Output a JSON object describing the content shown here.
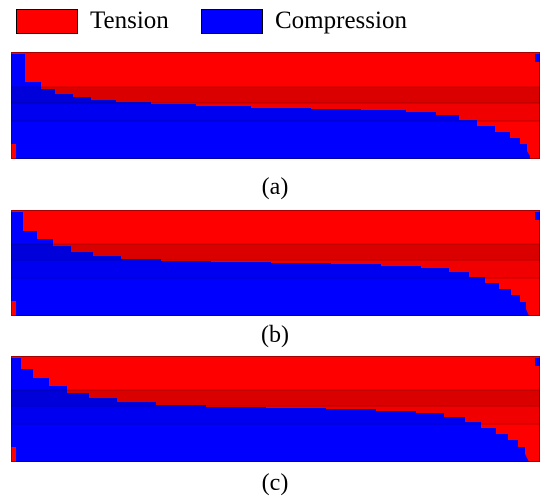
{
  "legend": {
    "items": [
      {
        "label": "Tension",
        "color": "#ff0000"
      },
      {
        "label": "Compression",
        "color": "#0000ff"
      }
    ]
  },
  "panels": [
    {
      "caption": "(a)"
    },
    {
      "caption": "(b)"
    },
    {
      "caption": "(c)"
    }
  ],
  "colors": {
    "tension": "#ff0000",
    "compression": "#0000ff",
    "band_shade": "#000000"
  }
}
